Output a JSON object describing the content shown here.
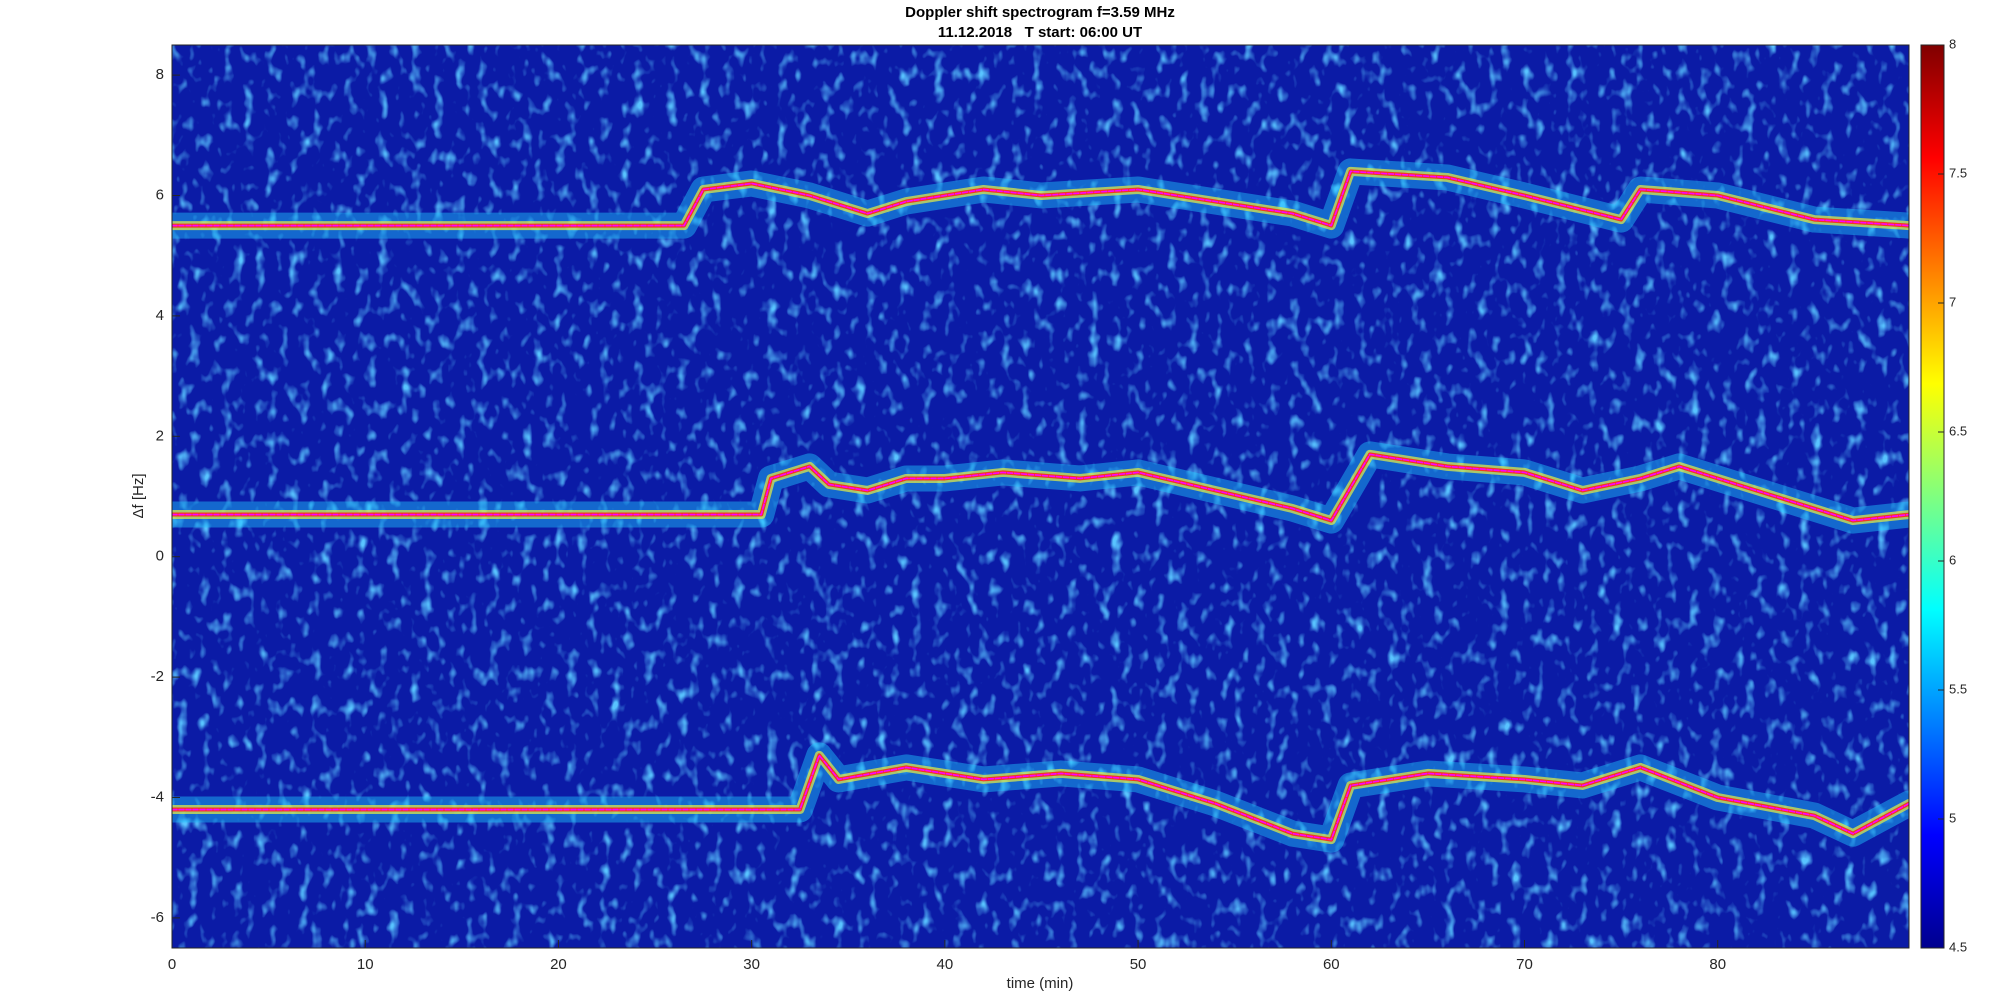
{
  "chart_data": {
    "type": "spectrogram",
    "title": "Doppler shift spectrogram f=3.59 MHz",
    "subtitle": "11.12.2018   T start: 06:00 UT",
    "xlabel": "time (min)",
    "ylabel": "Δf [Hz]",
    "xlim": [
      0,
      89.9
    ],
    "xticks": [
      0,
      10,
      20,
      30,
      40,
      50,
      60,
      70,
      80
    ],
    "ylim": [
      -6.5,
      8.5
    ],
    "yticks": [
      -6,
      -4,
      -2,
      0,
      2,
      4,
      6,
      8
    ],
    "colorbar": {
      "lim": [
        4.5,
        8
      ],
      "ticks": [
        4.5,
        5,
        5.5,
        6,
        6.5,
        7,
        7.5,
        8
      ]
    },
    "series": [
      {
        "color": "#ff00ff",
        "x": [
          0,
          26.5,
          27.5,
          30,
          33,
          36,
          38,
          40,
          42,
          45,
          50,
          54,
          58,
          60,
          61,
          66,
          70,
          75,
          76,
          80,
          85,
          89.9
        ],
        "values": [
          5.5,
          5.5,
          6.1,
          6.2,
          6.0,
          5.7,
          5.9,
          6.0,
          6.1,
          6.0,
          6.1,
          5.9,
          5.7,
          5.5,
          6.4,
          6.3,
          6.0,
          5.6,
          6.1,
          6.0,
          5.6,
          5.5
        ]
      },
      {
        "color": "#ff00ff",
        "x": [
          0,
          30.5,
          31,
          33,
          34,
          36,
          38,
          40,
          43,
          47,
          50,
          54,
          58,
          60,
          62,
          66,
          70,
          73,
          76,
          78,
          82,
          87,
          89.9
        ],
        "values": [
          0.7,
          0.7,
          1.3,
          1.5,
          1.2,
          1.1,
          1.3,
          1.3,
          1.4,
          1.3,
          1.4,
          1.1,
          0.8,
          0.6,
          1.7,
          1.5,
          1.4,
          1.1,
          1.3,
          1.5,
          1.1,
          0.6,
          0.7
        ]
      },
      {
        "color": "#ff00ff",
        "x": [
          0,
          32.5,
          33.5,
          34.5,
          38,
          42,
          46,
          50,
          54,
          58,
          60,
          61,
          65,
          70,
          73,
          76,
          80,
          85,
          87,
          89.9
        ],
        "values": [
          -4.2,
          -4.2,
          -3.3,
          -3.7,
          -3.5,
          -3.7,
          -3.6,
          -3.7,
          -4.1,
          -4.6,
          -4.7,
          -3.8,
          -3.6,
          -3.7,
          -3.8,
          -3.5,
          -4.0,
          -4.3,
          -4.6,
          -4.1
        ]
      }
    ]
  }
}
